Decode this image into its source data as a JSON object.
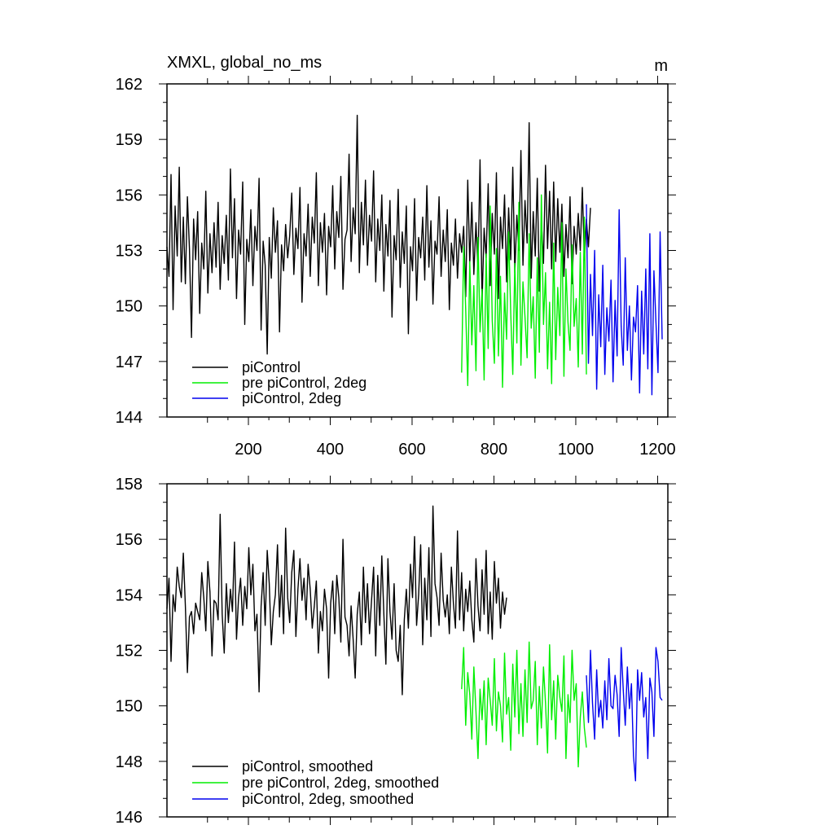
{
  "chart_data": [
    {
      "type": "line",
      "title": "XMXL, global_no_ms",
      "units": "m",
      "xlim": [
        1,
        1225
      ],
      "ylim": [
        144,
        162
      ],
      "x_ticks": [
        200,
        400,
        600,
        800,
        1000,
        1200
      ],
      "y_ticks": [
        144,
        147,
        150,
        153,
        156,
        159,
        162
      ],
      "grid": false,
      "legend_position": "bottom-left",
      "series": [
        {
          "name": "piControl",
          "color": "#000000",
          "x_start": 1,
          "x_step": 5,
          "values": [
            153.2,
            151.6,
            157.1,
            149.8,
            155.4,
            152.7,
            157.5,
            151.3,
            154.8,
            151.2,
            155.9,
            153.1,
            148.3,
            154.7,
            152.5,
            155.1,
            149.6,
            153.4,
            152.0,
            156.2,
            150.7,
            153.9,
            151.8,
            154.5,
            152.1,
            155.6,
            150.9,
            153.8,
            152.3,
            154.9,
            151.4,
            157.4,
            152.6,
            155.8,
            150.4,
            154.1,
            152.8,
            156.7,
            149.0,
            153.6,
            152.4,
            155.2,
            151.1,
            154.3,
            153.0,
            156.9,
            148.7,
            153.5,
            152.2,
            147.4,
            153.7,
            151.5,
            155.3,
            152.9,
            154.6,
            148.6,
            153.3,
            151.9,
            154.4,
            152.6,
            153.8,
            156.1,
            151.7,
            154.2,
            153.1,
            156.4,
            150.2,
            153.9,
            152.7,
            155.5,
            151.6,
            154.8,
            153.4,
            157.2,
            151.1,
            154.5,
            152.9,
            155.0,
            150.6,
            154.3,
            153.2,
            156.5,
            152.0,
            155.1,
            153.7,
            157.0,
            150.9,
            153.6,
            154.1,
            158.2,
            152.4,
            155.3,
            153.9,
            160.3,
            151.8,
            155.6,
            153.3,
            156.8,
            152.2,
            154.9,
            153.5,
            157.3,
            151.3,
            154.7,
            153.0,
            156.0,
            150.8,
            154.4,
            152.7,
            155.7,
            149.4,
            153.8,
            152.5,
            156.3,
            151.0,
            154.0,
            152.3,
            155.4,
            148.5,
            153.2,
            151.9,
            155.8,
            150.3,
            153.7,
            152.6,
            154.8,
            151.4,
            156.5,
            152.1,
            154.6,
            150.1,
            153.5,
            152.8,
            155.9,
            151.6,
            154.1,
            152.4,
            155.2,
            149.8,
            153.4,
            152.2,
            154.7,
            151.5,
            153.9,
            152.9,
            154.3,
            150.5,
            156.8,
            152.3,
            155.6,
            151.7,
            154.5,
            152.0,
            157.9,
            150.2,
            154.2,
            152.6,
            156.6,
            151.1,
            155.0,
            152.8,
            157.2,
            150.4,
            154.8,
            153.1,
            156.0,
            151.3,
            155.3,
            152.5,
            157.5,
            151.8,
            154.9,
            153.0,
            158.4,
            152.2,
            155.7,
            153.4,
            159.9,
            151.5,
            155.1,
            152.7,
            156.9,
            150.8,
            154.6,
            152.3,
            157.6,
            153.1,
            156.2,
            152.0,
            156.7,
            152.4,
            155.8,
            152.9,
            155.5,
            151.6,
            154.4,
            152.6,
            155.9,
            151.2,
            154.3,
            152.8,
            155.0,
            153.0,
            156.4,
            152.5,
            154.7,
            153.2,
            155.3
          ],
          "note_first": true
        },
        {
          "name": "pre piControl, 2deg",
          "color": "#00ee00",
          "x_start": 721,
          "x_step": 5,
          "values": [
            146.4,
            153.2,
            149.8,
            145.7,
            152.4,
            147.9,
            151.1,
            146.5,
            153.7,
            148.6,
            150.9,
            146.0,
            152.8,
            147.7,
            155.4,
            149.2,
            146.9,
            153.1,
            147.3,
            151.6,
            145.6,
            150.7,
            148.2,
            154.0,
            149.6,
            146.3,
            152.3,
            148.0,
            155.6,
            146.8,
            151.3,
            149.4,
            147.2,
            153.9,
            148.8,
            150.5,
            146.1,
            152.6,
            147.5,
            156.0,
            149.0,
            151.8,
            146.6,
            150.2,
            145.8,
            153.4,
            147.1,
            151.0,
            148.4,
            154.5,
            146.2,
            152.0,
            149.1,
            147.6,
            153.3,
            148.9,
            150.4,
            146.7,
            152.9,
            147.4,
            154.8,
            146.3
          ],
          "note_first": true
        },
        {
          "name": "piControl, 2deg",
          "color": "#0000ee",
          "x_start": 1026,
          "x_step": 5,
          "values": [
            155.5,
            146.9,
            151.7,
            148.4,
            153.0,
            145.5,
            150.6,
            147.8,
            152.2,
            146.3,
            149.9,
            148.1,
            151.4,
            145.9,
            150.3,
            147.3,
            155.2,
            148.9,
            146.8,
            152.6,
            147.6,
            150.0,
            146.0,
            149.4,
            148.6,
            151.1,
            145.3,
            150.8,
            147.4,
            152.0,
            146.6,
            153.9,
            145.2,
            151.9,
            149.1,
            146.4,
            154.0,
            148.2
          ],
          "note_first": true
        }
      ]
    },
    {
      "type": "line",
      "title": "",
      "xlim": [
        1,
        1225
      ],
      "ylim": [
        146,
        158
      ],
      "x_ticks": [
        200,
        400,
        600,
        800,
        1000,
        1200
      ],
      "y_ticks": [
        146,
        148,
        150,
        152,
        154,
        156,
        158
      ],
      "grid": false,
      "legend_position": "bottom-left",
      "series": [
        {
          "name": "piControl, smoothed",
          "color": "#000000",
          "x_start": 1,
          "x_step": 5,
          "values": [
            153.5,
            154.6,
            151.6,
            154.0,
            153.4,
            155.0,
            154.3,
            153.9,
            155.5,
            153.6,
            151.2,
            153.2,
            153.4,
            152.6,
            153.7,
            153.4,
            153.1,
            154.8,
            153.9,
            152.7,
            155.2,
            154.1,
            151.8,
            153.8,
            153.7,
            153.1,
            156.9,
            153.3,
            151.9,
            154.4,
            153.0,
            154.2,
            153.4,
            155.9,
            152.4,
            153.9,
            154.6,
            152.9,
            154.3,
            153.5,
            155.7,
            154.0,
            155.1,
            152.7,
            153.3,
            150.5,
            153.6,
            154.8,
            152.9,
            155.6,
            154.4,
            152.2,
            153.4,
            154.0,
            155.8,
            153.2,
            154.7,
            152.6,
            156.4,
            153.9,
            153.0,
            154.8,
            155.6,
            152.5,
            154.2,
            155.3,
            153.8,
            154.6,
            153.1,
            155.1,
            154.2,
            152.8,
            153.6,
            154.5,
            151.9,
            153.4,
            152.7,
            154.2,
            153.5,
            151.0,
            153.7,
            154.5,
            152.6,
            154.7,
            153.9,
            152.3,
            156.0,
            153.2,
            152.9,
            151.8,
            153.6,
            152.4,
            151.0,
            153.3,
            154.1,
            152.2,
            155.0,
            153.0,
            154.4,
            152.6,
            153.8,
            155.0,
            151.8,
            154.7,
            152.9,
            155.4,
            153.3,
            151.5,
            155.3,
            153.4,
            152.4,
            154.4,
            152.0,
            151.6,
            152.9,
            150.4,
            153.1,
            154.2,
            152.8,
            155.1,
            153.9,
            156.1,
            152.9,
            154.0,
            155.8,
            152.2,
            154.6,
            153.1,
            155.7,
            152.5,
            157.2,
            154.4,
            153.9,
            152.9,
            155.5,
            153.8,
            153.2,
            154.0,
            152.6,
            155.0,
            153.7,
            152.8,
            156.3,
            153.1,
            154.8,
            152.7,
            154.2,
            153.4,
            154.5,
            153.1,
            152.3,
            155.3,
            153.6,
            152.7,
            154.9,
            153.3,
            155.6,
            152.6,
            154.1,
            152.4,
            155.2,
            153.7,
            154.6,
            152.8,
            154.1,
            153.3,
            153.9
          ],
          "note_first": true
        },
        {
          "name": "pre piControl, 2deg, smoothed",
          "color": "#00ee00",
          "x_start": 721,
          "x_step": 5,
          "values": [
            150.6,
            152.1,
            149.3,
            151.2,
            150.4,
            148.8,
            151.4,
            149.8,
            148.1,
            150.6,
            149.5,
            150.9,
            148.6,
            151.0,
            150.2,
            149.3,
            151.7,
            149.1,
            150.5,
            150.0,
            148.7,
            151.9,
            149.7,
            150.3,
            148.4,
            151.5,
            149.6,
            152.0,
            149.0,
            150.8,
            148.9,
            151.3,
            149.4,
            152.3,
            149.9,
            150.2,
            151.6,
            148.6,
            150.7,
            149.2,
            151.4,
            150.1,
            148.3,
            152.2,
            149.5,
            150.9,
            148.8,
            151.1,
            150.3,
            149.8,
            151.8,
            148.1,
            150.4,
            149.4,
            152.0,
            150.2,
            150.8,
            147.8,
            149.6,
            150.5,
            149.2,
            148.5
          ],
          "note_first": true
        },
        {
          "name": "piControl, 2deg, smoothed",
          "color": "#0000ee",
          "x_start": 1026,
          "x_step": 5,
          "values": [
            151.1,
            149.4,
            152.0,
            150.1,
            148.8,
            151.3,
            149.6,
            150.2,
            149.2,
            150.9,
            149.5,
            151.7,
            150.0,
            149.9,
            151.1,
            150.4,
            148.9,
            152.1,
            150.6,
            149.3,
            151.4,
            149.9,
            150.8,
            148.2,
            147.3,
            151.3,
            150.2,
            151.2,
            149.6,
            150.3,
            148.1,
            151.0,
            150.5,
            148.9,
            152.1,
            151.6,
            150.3,
            150.2
          ],
          "note_first": true
        }
      ]
    }
  ]
}
